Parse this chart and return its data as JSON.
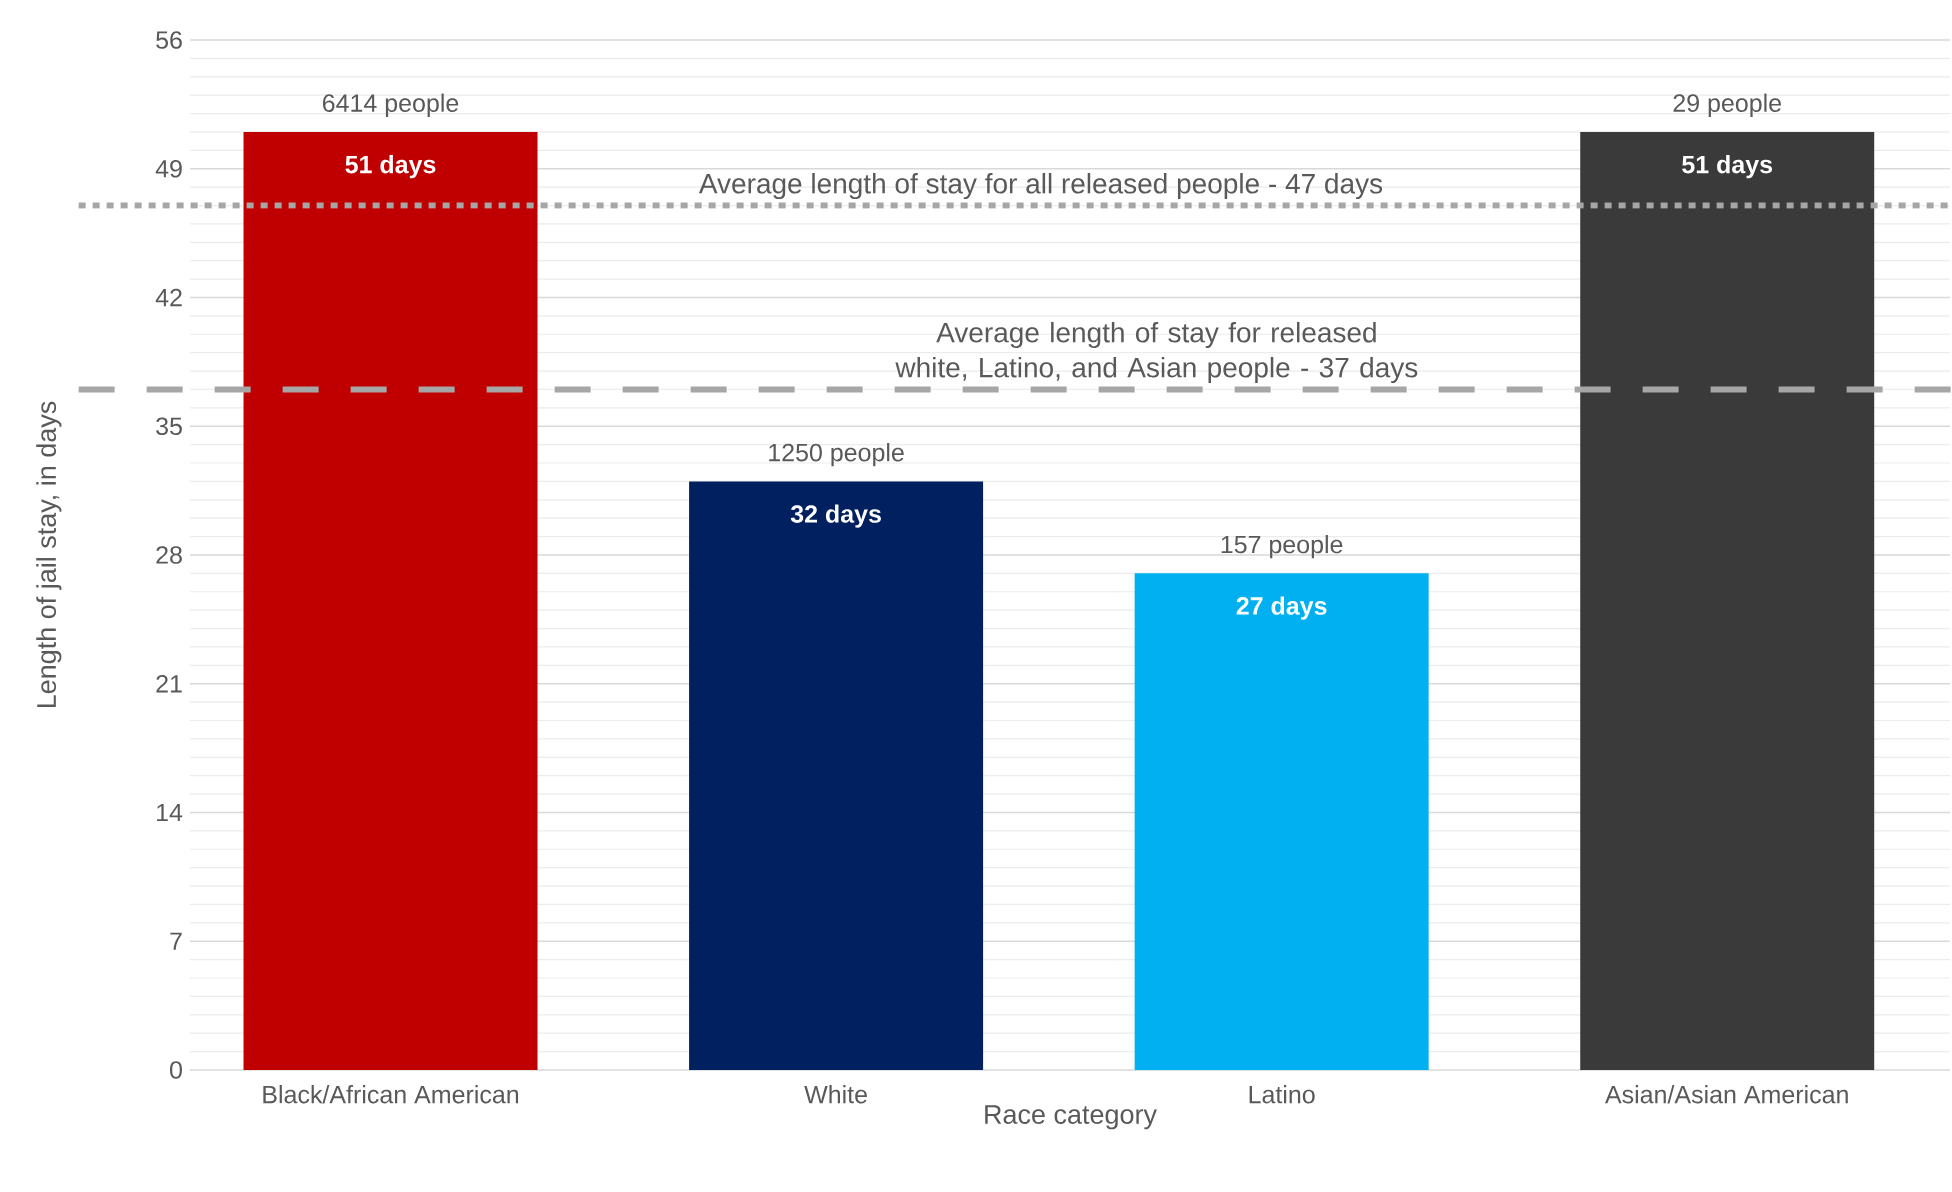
{
  "chart_data": {
    "type": "bar",
    "xlabel": "Race category",
    "ylabel": "Length of jail stay, in days",
    "categories": [
      "Black/African American",
      "White",
      "Latino",
      "Asian/Asian American"
    ],
    "values": [
      51,
      32,
      27,
      51
    ],
    "colors": [
      "#c00000",
      "#002060",
      "#00b0f0",
      "#3a3a3a"
    ],
    "value_labels": [
      "51 days",
      "32 days",
      "27 days",
      "51 days"
    ],
    "ylim": [
      0,
      56
    ],
    "yticks": [
      0,
      7,
      14,
      21,
      28,
      35,
      42,
      49,
      56
    ],
    "grid": "y",
    "ref_lines": [
      {
        "axis": "y",
        "value": 47,
        "label": "Average length of stay for all released people - 47 days",
        "color": "#a6a6a6",
        "line_style": "dotted"
      },
      {
        "axis": "y",
        "value": 37,
        "label": "Average length of stay for released white, Latino, and Asian people - 37 days",
        "color": "#a6a6a6",
        "line_style": "dashed"
      }
    ],
    "annotations": [
      {
        "text": "6414 people",
        "x": "Black/African American",
        "y": 51
      },
      {
        "text": "1250 people",
        "x": "White",
        "y": 32
      },
      {
        "text": "157 people",
        "x": "Latino",
        "y": 27
      },
      {
        "text": "29 people",
        "x": "Asian/Asian American",
        "y": 51
      }
    ]
  }
}
